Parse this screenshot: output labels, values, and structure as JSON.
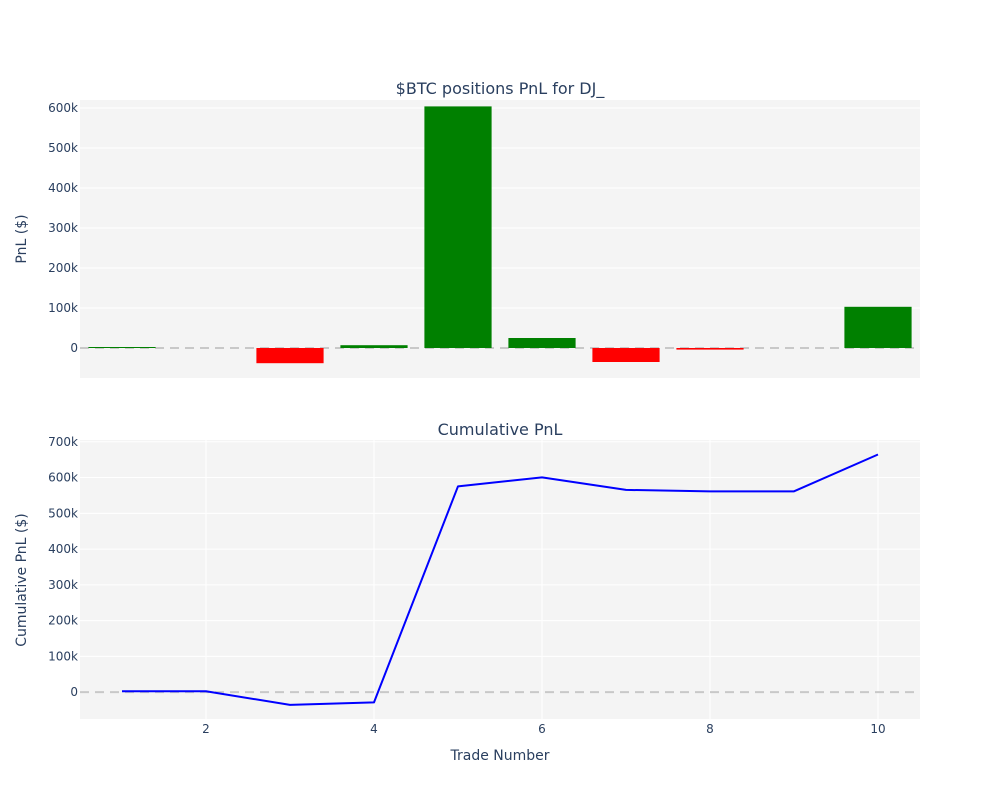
{
  "chart_data": [
    {
      "type": "bar",
      "title": "$BTC positions PnL for DJ_",
      "xlabel": "",
      "ylabel": "PnL ($)",
      "x": [
        1,
        2,
        3,
        4,
        5,
        6,
        7,
        8,
        9,
        10
      ],
      "values": [
        2500,
        0,
        -38000,
        7000,
        604000,
        25000,
        -35000,
        -4000,
        0,
        103000
      ],
      "positive_color": "#008000",
      "negative_color": "#ff0000",
      "ylim": [
        -75000,
        620000
      ],
      "xlim": [
        0.5,
        10.5
      ],
      "y_ticks": [
        0,
        100000,
        200000,
        300000,
        400000,
        500000,
        600000
      ],
      "y_tick_labels": [
        "0",
        "100k",
        "200k",
        "300k",
        "400k",
        "500k",
        "600k"
      ],
      "zero_line": "dashed",
      "grid": true
    },
    {
      "type": "line",
      "title": "Cumulative PnL",
      "xlabel": "Trade Number",
      "ylabel": "Cumulative PnL ($)",
      "x": [
        1,
        2,
        3,
        4,
        5,
        6,
        7,
        8,
        9,
        10
      ],
      "values": [
        2500,
        2500,
        -35500,
        -28500,
        575500,
        600500,
        565500,
        561500,
        561500,
        664500
      ],
      "line_color": "#0000ff",
      "ylim": [
        -75000,
        705000
      ],
      "xlim": [
        0.5,
        10.5
      ],
      "x_ticks": [
        2,
        4,
        6,
        8,
        10
      ],
      "x_tick_labels": [
        "2",
        "4",
        "6",
        "8",
        "10"
      ],
      "y_ticks": [
        0,
        100000,
        200000,
        300000,
        400000,
        500000,
        600000,
        700000
      ],
      "y_tick_labels": [
        "0",
        "100k",
        "200k",
        "300k",
        "400k",
        "500k",
        "600k",
        "700k"
      ],
      "zero_line": "dashed",
      "grid": true
    }
  ],
  "colors": {
    "plot_background": "#f4f4f4",
    "grid": "#ffffff",
    "zero_line": "#c8c8c8",
    "text": "#2a3f5f"
  }
}
